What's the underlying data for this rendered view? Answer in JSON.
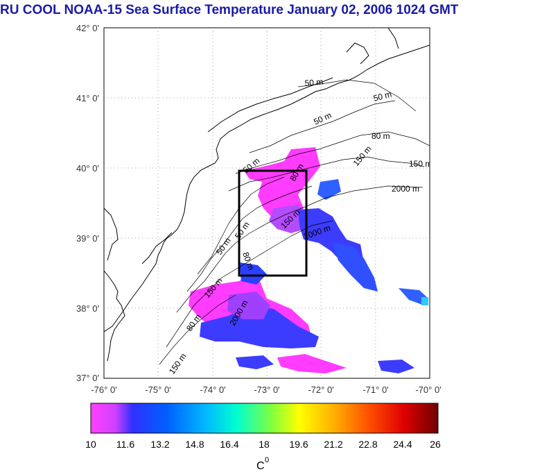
{
  "title": "RU COOL  NOAA-15 Sea Surface Temperature January 02, 2006 1024 GMT",
  "lat_ticks": [
    "42° 0'",
    "41° 0'",
    "40° 0'",
    "39° 0'",
    "38° 0'",
    "37° 0'"
  ],
  "lon_ticks": [
    "-76° 0'",
    "-75° 0'",
    "-74° 0'",
    "-73° 0'",
    "-72° 0'",
    "-71° 0'",
    "-70° 0'"
  ],
  "isobath_labels": [
    "50 m",
    "50 m",
    "50 m",
    "80 m",
    "150 m",
    "2000 m",
    "50 m",
    "80 m",
    "150 m",
    "150 m",
    "2000 m",
    "50 m",
    "50 m",
    "80 m",
    "150 m",
    "2000 m",
    "80 m",
    "150 m"
  ],
  "colorbar": {
    "ticks": [
      "10",
      "11.6",
      "13.2",
      "14.8",
      "16.4",
      "18",
      "19.6",
      "21.2",
      "22.8",
      "24.4",
      "26"
    ],
    "unit_label": "C",
    "unit_superscript": "0",
    "min": 10,
    "max": 26
  },
  "colors": {
    "title": "#1a1aa8",
    "coast": "#000000",
    "grid": "#888888",
    "box": "#000000"
  }
}
